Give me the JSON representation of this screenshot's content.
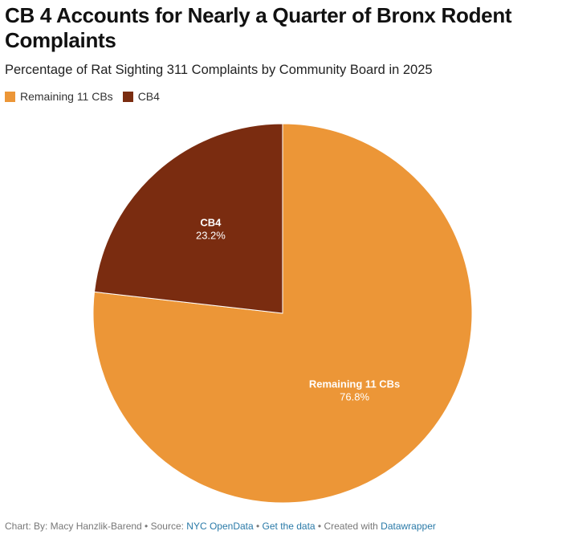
{
  "chart_data": {
    "type": "pie",
    "title": "CB 4 Accounts for Nearly a Quarter of Bronx Rodent Complaints",
    "subtitle": "Percentage of Rat Sighting 311 Complaints by Community Board in 2025",
    "legend_placement": "top-left",
    "slices": [
      {
        "name": "Remaining 11 CBs",
        "value": 76.8,
        "label": "76.8%",
        "color": "#ec9637"
      },
      {
        "name": "CB4",
        "value": 23.2,
        "label": "23.2%",
        "color": "#7a2c10"
      }
    ]
  },
  "footer": {
    "prefix": "Chart: By: Macy Hanzlik-Barend  • Source: ",
    "source": "NYC OpenData",
    "sep1": " • ",
    "get_data": "Get the data",
    "sep2": " • Created with ",
    "tool": "Datawrapper"
  }
}
